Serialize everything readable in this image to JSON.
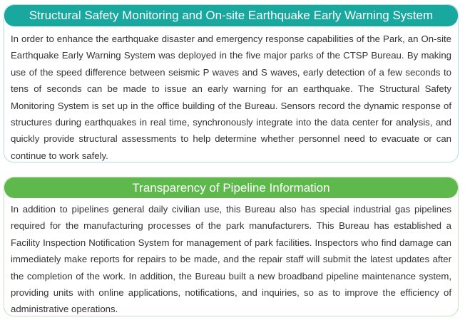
{
  "sections": [
    {
      "title": "Structural Safety Monitoring and On-site Earthquake Early Warning System",
      "body": "In order to enhance the earthquake disaster and emergency response capabilities of the Park, an On-site Earthquake Early Warning System was deployed in the five major parks of the CTSP Bureau. By making use of the speed difference between seismic P waves and S waves, early detection of a few seconds to tens of seconds can be made to issue an early warning for an earthquake. The Structural Safety Monitoring System is set up in the office building of the Bureau. Sensors record the dynamic response of structures during earthquakes in real time, synchronously integrate into the data center for analysis, and quickly provide structural assessments to help determine whether personnel need to evacuate or can continue to work safely.",
      "accent_color": "#18a89f"
    },
    {
      "title": "Transparency of Pipeline Information",
      "body": "In addition to pipelines general daily civilian use, this Bureau also has special industrial gas pipelines required for the manufacturing processes of the park manufacturers. This Bureau has established a Facility Inspection Notification System for management of park facilities. Inspectors who find damage can immediately make reports for repairs to be made, and the repair staff will submit the latest updates after the completion of the work. In addition, the Bureau built a new broadband pipeline maintenance system, providing units with online applications, notifications, and inquiries, so as to improve the efficiency of administrative operations.",
      "accent_color": "#5fb84c"
    }
  ]
}
